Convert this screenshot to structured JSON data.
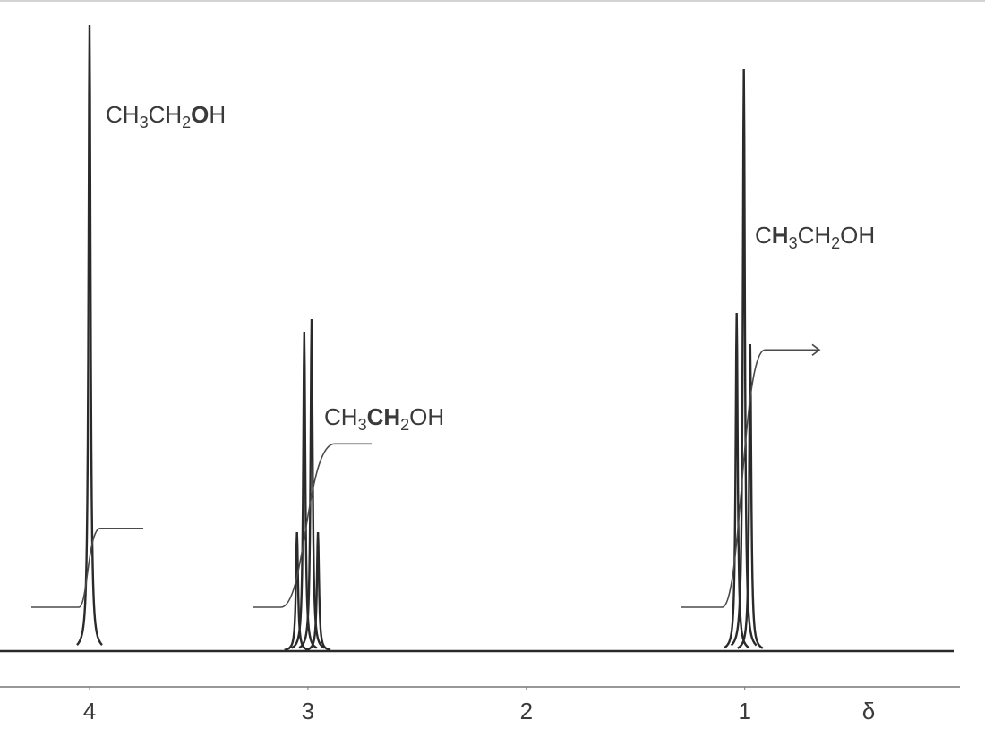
{
  "chart_data": {
    "type": "nmr",
    "xlim": [
      4.41,
      -0.1
    ],
    "xticks": [
      4,
      3,
      2,
      1
    ],
    "x_label": "δ",
    "ylim": [
      0,
      100
    ],
    "signals": [
      {
        "label": "CH₃CH₂OH",
        "peaks": [
          4.0
        ],
        "heights": [
          100
        ],
        "integral": 12.6
      },
      {
        "label": "CH₃CH₂OH",
        "peaks": [
          3.05,
          3.017,
          2.983,
          2.954
        ],
        "heights": [
          19,
          51,
          53,
          19
        ],
        "integral": 26.1
      },
      {
        "label": "CH₃CH₂OH",
        "peaks": [
          1.037,
          1.004,
          0.975
        ],
        "heights": [
          54,
          93,
          49
        ],
        "integral": 41.1
      }
    ]
  }
}
